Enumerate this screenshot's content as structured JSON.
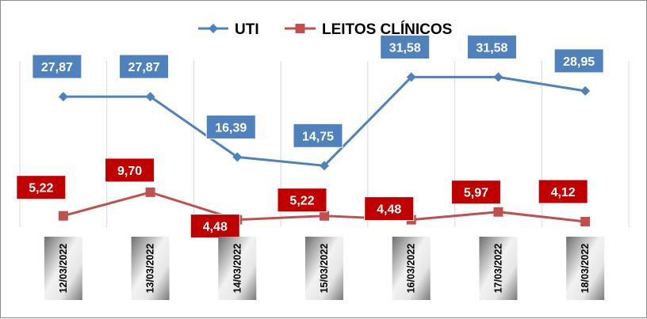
{
  "chart_data": {
    "type": "line",
    "title": "",
    "xlabel": "",
    "ylabel": "",
    "categories": [
      "12/03/2022",
      "13/03/2022",
      "14/03/2022",
      "15/03/2022",
      "16/03/2022",
      "17/03/2022",
      "18/03/2022"
    ],
    "series": [
      {
        "name": "UTI",
        "values": [
          27.87,
          27.87,
          16.39,
          14.75,
          31.58,
          31.58,
          28.95
        ],
        "labels": [
          "27,87",
          "27,87",
          "16,39",
          "14,75",
          "31,58",
          "31,58",
          "28,95"
        ],
        "color": "#4f81bd",
        "label_bg": "#4f81bd",
        "marker": "diamond"
      },
      {
        "name": "LEITOS CLÍNICOS",
        "values": [
          5.22,
          9.7,
          4.48,
          5.22,
          4.48,
          5.97,
          4.12
        ],
        "labels": [
          "5,22",
          "9,70",
          "4,48",
          "5,22",
          "4,48",
          "5,97",
          "4,12"
        ],
        "color": "#c0504d",
        "label_bg": "#c00000",
        "marker": "square"
      }
    ],
    "legend": {
      "position": "top",
      "entries": [
        "UTI",
        "LEITOS CLÍNICOS"
      ]
    },
    "grid": {
      "vertical": true,
      "horizontal": false
    },
    "axes_visible": false
  }
}
